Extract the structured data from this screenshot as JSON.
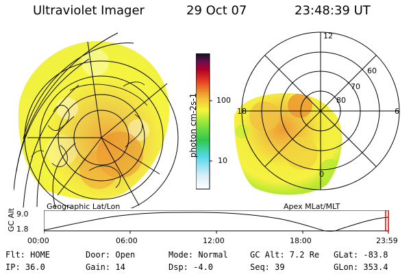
{
  "header": {
    "title": "Ultraviolet Imager",
    "date": "29 Oct 07",
    "time": "23:48:39 UT"
  },
  "panels": {
    "left_caption": "Geographic Lat/Lon",
    "right_caption": "Apex MLat/MLT"
  },
  "polar_labels": {
    "mlt_12": "12",
    "mlt_18": "18",
    "mlt_6": "6",
    "mlt_0": "0",
    "lat_60": "60",
    "lat_70": "70",
    "lat_80": "80"
  },
  "colorbar": {
    "label": "photon cm-2s-1",
    "tick_100": "100",
    "tick_10": "10"
  },
  "timeline": {
    "ylabel": "GC Alt",
    "ytick_top": "9.0",
    "ytick_bottom": "1.8",
    "xticks": [
      "00:00",
      "06:00",
      "12:00",
      "18:00",
      "23:59"
    ]
  },
  "status": {
    "row1": {
      "flt": "Flt: HOME",
      "door": "Door: Open",
      "mode": "Mode: Normal",
      "gc_alt": "GC Alt: 7.2 Re",
      "glat": "GLat: -83.8"
    },
    "row2": {
      "ip": "IP: 36.0",
      "gain": "Gain: 14",
      "dsp": "Dsp:    -4.0",
      "seq": "Seq: 39",
      "glon": "GLon: 353.4"
    }
  },
  "colors": {
    "background": "#ffffff",
    "axis": "#000000",
    "marker": "#d20000",
    "aurora_yellow": "#f2f13d",
    "aurora_orange": "#f2a93b",
    "aurora_deep_orange": "#eb8a28",
    "aurora_green": "#b6e831"
  }
}
